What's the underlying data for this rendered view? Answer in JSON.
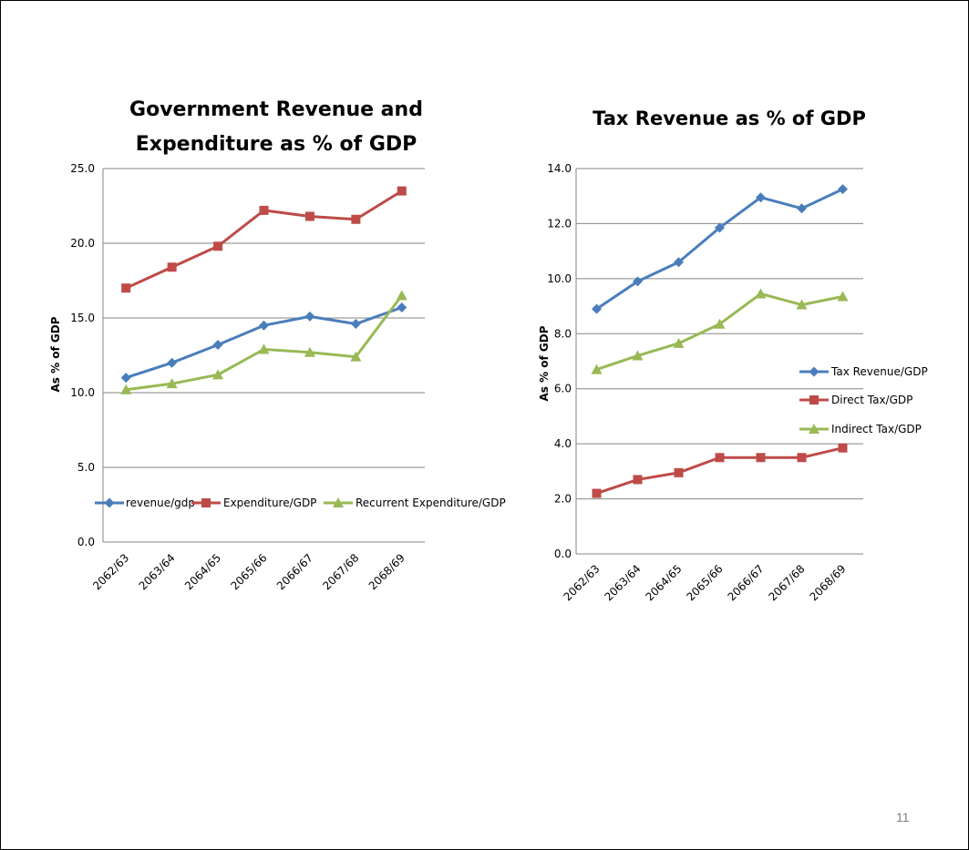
{
  "page_number": "11",
  "chart_data": [
    {
      "type": "line",
      "title_lines": [
        "Government Revenue and",
        "Expenditure as % of GDP"
      ],
      "xlabel": "",
      "ylabel": "As % of GDP",
      "categories": [
        "2062/63",
        "2063/64",
        "2064/65",
        "2065/66",
        "2066/67",
        "2067/68",
        "2068/69"
      ],
      "ylim": [
        0,
        25
      ],
      "ytick_step": 5,
      "ytick_labels": [
        "0.0",
        "5.0",
        "10.0",
        "15.0",
        "20.0",
        "25.0"
      ],
      "grid": true,
      "legend_position": "inside-bottom",
      "series": [
        {
          "name": "revenue/gdp",
          "color": "#4a7ebb",
          "marker": "diamond",
          "values": [
            11.0,
            12.0,
            13.2,
            14.5,
            15.1,
            14.6,
            15.7
          ]
        },
        {
          "name": "Expenditure/GDP",
          "color": "#be4b48",
          "marker": "square",
          "values": [
            17.0,
            18.4,
            19.8,
            22.2,
            21.8,
            21.6,
            23.5
          ]
        },
        {
          "name": "Recurrent Expenditure/GDP",
          "color": "#98b954",
          "marker": "triangle",
          "values": [
            10.2,
            10.6,
            11.2,
            12.9,
            12.7,
            12.4,
            16.5
          ]
        }
      ]
    },
    {
      "type": "line",
      "title_lines": [
        "Tax Revenue as % of GDP"
      ],
      "xlabel": "",
      "ylabel": "As % of GDP",
      "categories": [
        "2062/63",
        "2063/64",
        "2064/65",
        "2065/66",
        "2066/67",
        "2067/68",
        "2068/69"
      ],
      "ylim": [
        0,
        14
      ],
      "ytick_step": 2,
      "ytick_labels": [
        "0.0",
        "2.0",
        "4.0",
        "6.0",
        "8.0",
        "10.0",
        "12.0",
        "14.0"
      ],
      "grid": true,
      "legend_position": "right",
      "series": [
        {
          "name": "Tax Revenue/GDP",
          "color": "#4a7ebb",
          "marker": "diamond",
          "values": [
            8.9,
            9.9,
            10.6,
            11.85,
            12.95,
            12.55,
            13.25
          ]
        },
        {
          "name": "Direct Tax/GDP",
          "color": "#be4b48",
          "marker": "square",
          "values": [
            2.2,
            2.7,
            2.95,
            3.5,
            3.5,
            3.5,
            3.85
          ]
        },
        {
          "name": "Indirect Tax/GDP",
          "color": "#98b954",
          "marker": "triangle",
          "values": [
            6.7,
            7.2,
            7.65,
            8.35,
            9.45,
            9.05,
            9.35
          ]
        }
      ]
    }
  ]
}
